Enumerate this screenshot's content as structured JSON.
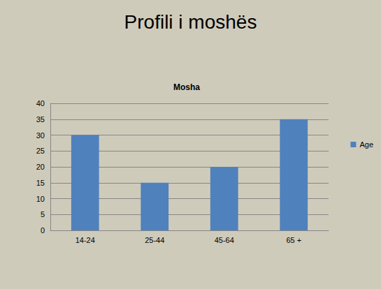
{
  "chart_data": {
    "type": "bar",
    "title": "Profili i moshës",
    "subtitle": "Mosha",
    "categories": [
      "14-24",
      "25-44",
      "45-64",
      "65 +"
    ],
    "series": [
      {
        "name": "Age",
        "color": "#4f81bd",
        "values": [
          30,
          15,
          20,
          35
        ]
      }
    ],
    "ylim": [
      0,
      40
    ],
    "yticks": [
      0,
      5,
      10,
      15,
      20,
      25,
      30,
      35,
      40
    ],
    "grid": true,
    "legend": "right"
  }
}
